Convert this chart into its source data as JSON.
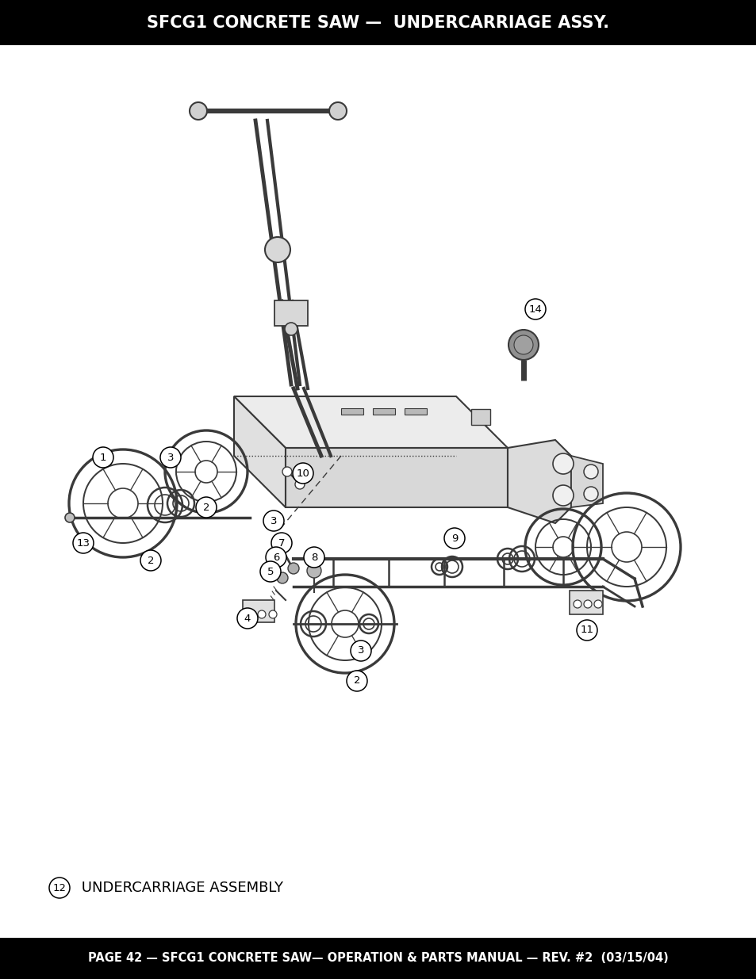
{
  "title": "SFCG1 CONCRETE SAW —  UNDERCARRIAGE ASSY.",
  "footer": "PAGE 42 — SFCG1 CONCRETE SAW— OPERATION & PARTS MANUAL — REV. #2  (03/15/04)",
  "header_bg": "#000000",
  "footer_bg": "#000000",
  "header_text_color": "#ffffff",
  "footer_text_color": "#ffffff",
  "page_bg": "#ffffff",
  "title_fontsize": 15,
  "footer_fontsize": 10.5
}
